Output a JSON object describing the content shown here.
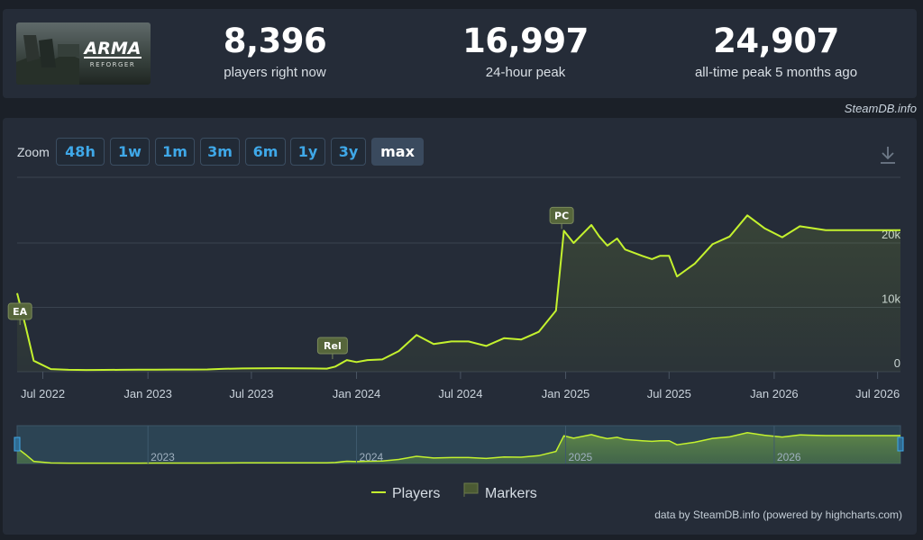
{
  "header": {
    "game_logo": {
      "text": "ARMA",
      "subtext": "REFORGER"
    },
    "stats": [
      {
        "value": "8,396",
        "label": "players right now"
      },
      {
        "value": "16,997",
        "label": "24-hour peak"
      },
      {
        "value": "24,907",
        "label": "all-time peak 5 months ago"
      }
    ],
    "credit": "SteamDB.info"
  },
  "zoom": {
    "label": "Zoom",
    "buttons": [
      "48h",
      "1w",
      "1m",
      "3m",
      "6m",
      "1y",
      "3y",
      "max"
    ],
    "active": "max"
  },
  "colors": {
    "series": "#c4f22e",
    "marker": "#56663b",
    "text_link": "#3fa8e8"
  },
  "chart_data": {
    "type": "line",
    "x_labels": [
      "Jul 2022",
      "Jan 2023",
      "Jul 2023",
      "Jan 2024",
      "Jul 2024",
      "Jan 2025",
      "Jul 2025",
      "Jan 2026",
      "Jul 2026"
    ],
    "y_ticks": [
      "0",
      "10k",
      "20k"
    ],
    "ylim": [
      0,
      27000
    ],
    "grid": true,
    "series": [
      {
        "name": "Players",
        "x": [
          "2022-05-17",
          "2022-06-01",
          "2022-06-15",
          "2022-07-15",
          "2022-08-15",
          "2022-09-15",
          "2022-10-15",
          "2022-11-15",
          "2022-12-15",
          "2023-01-15",
          "2023-02-15",
          "2023-03-15",
          "2023-04-15",
          "2023-05-15",
          "2023-06-15",
          "2023-07-15",
          "2023-08-15",
          "2023-09-15",
          "2023-10-15",
          "2023-11-10",
          "2023-11-25",
          "2023-12-15",
          "2024-01-01",
          "2024-01-20",
          "2024-02-15",
          "2024-03-15",
          "2024-04-15",
          "2024-05-15",
          "2024-06-15",
          "2024-07-15",
          "2024-08-15",
          "2024-09-15",
          "2024-10-15",
          "2024-11-15",
          "2024-12-15",
          "2024-12-29",
          "2025-01-15",
          "2025-02-15",
          "2025-03-01",
          "2025-03-15",
          "2025-04-01",
          "2025-04-15",
          "2025-05-15",
          "2025-06-01",
          "2025-06-15",
          "2025-07-01",
          "2025-07-15",
          "2025-08-15",
          "2025-09-15",
          "2025-10-15",
          "2025-11-15",
          "2025-12-15",
          "2026-01-15",
          "2026-02-15",
          "2026-03-01",
          "2026-04-01",
          "2026-05-15",
          "2026-06-15",
          "2026-07-15",
          "2026-08-10"
        ],
        "values": [
          12200,
          7000,
          1700,
          400,
          300,
          270,
          280,
          300,
          310,
          320,
          330,
          330,
          350,
          450,
          500,
          520,
          550,
          530,
          500,
          480,
          800,
          1800,
          1500,
          1800,
          1900,
          3200,
          5700,
          4300,
          4700,
          4700,
          4000,
          5200,
          5000,
          6200,
          9500,
          21900,
          20000,
          22800,
          21000,
          19600,
          20700,
          19000,
          18000,
          17500,
          18000,
          18000,
          14800,
          16800,
          19800,
          21000,
          24300,
          22300,
          20900,
          22600,
          22400,
          22000,
          22000,
          22000,
          22000,
          22000
        ]
      }
    ],
    "markers": [
      {
        "label": "EA",
        "x": "2022-05-22"
      },
      {
        "label": "Rel",
        "x": "2023-11-20"
      },
      {
        "label": "PC",
        "x": "2024-12-25"
      }
    ],
    "navigator_labels": [
      "2023",
      "2024",
      "2025",
      "2026"
    ],
    "legend": [
      "Players",
      "Markers"
    ],
    "legend_position": "bottom-center"
  },
  "footer": {
    "credit": "data by SteamDB.info (powered by highcharts.com)"
  }
}
